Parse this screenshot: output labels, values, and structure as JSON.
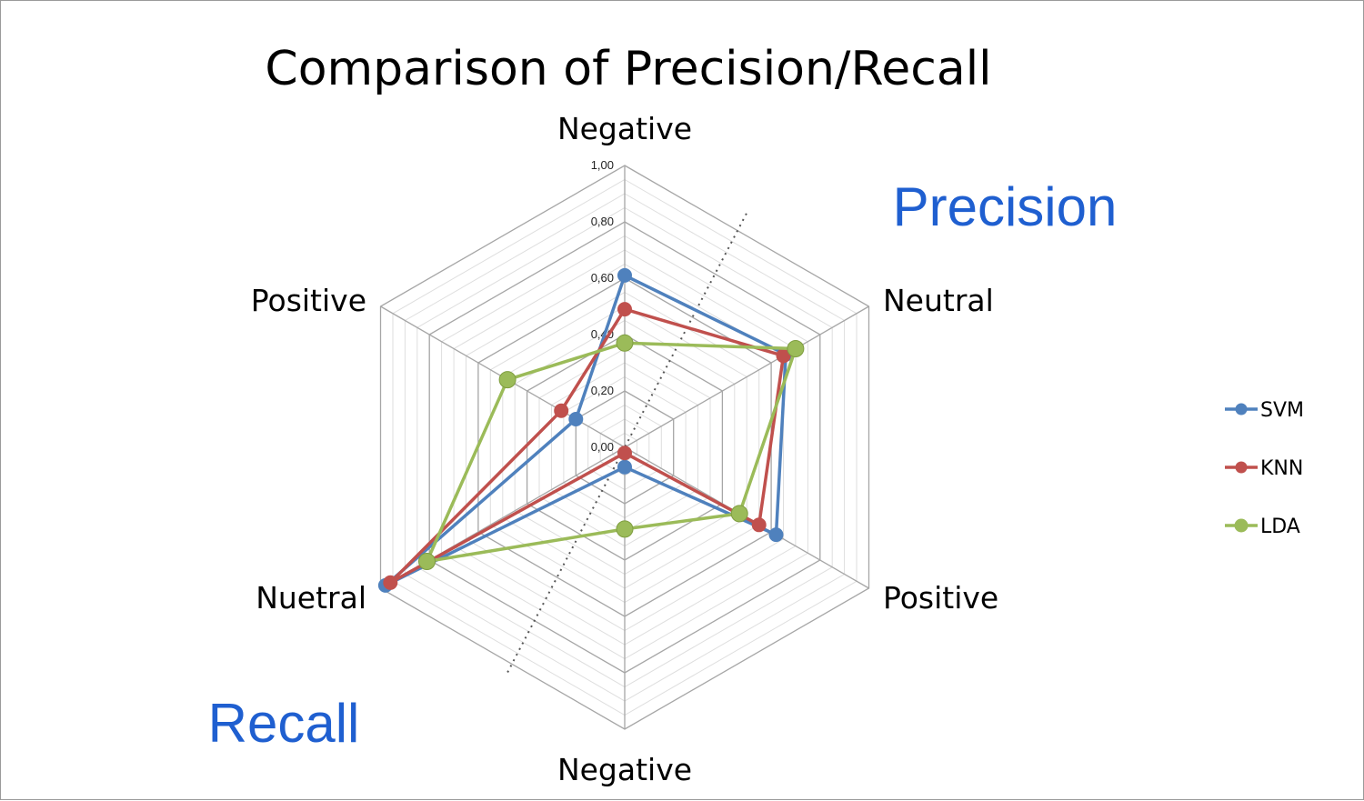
{
  "chart_data": {
    "type": "radar",
    "title": "Comparison of Precision/Recall",
    "axes": [
      "Negative",
      "Neutral",
      "Positive",
      "Negative",
      "Nuetral",
      "Positive"
    ],
    "tick_labels": [
      "0,00",
      "0,20",
      "0,40",
      "0,60",
      "0,80",
      "1,00"
    ],
    "range": [
      0,
      1
    ],
    "minor_gridlines": 20,
    "annotations": [
      {
        "text": "Precision",
        "color": "#1f5fd0"
      },
      {
        "text": "Recall",
        "color": "#1f5fd0"
      }
    ],
    "legend_position": "right",
    "series": [
      {
        "name": "SVM",
        "color": "#4f81bd",
        "values": [
          0.61,
          0.66,
          0.62,
          0.07,
          0.98,
          0.2
        ]
      },
      {
        "name": "KNN",
        "color": "#c0504d",
        "values": [
          0.49,
          0.65,
          0.55,
          0.02,
          0.96,
          0.26
        ]
      },
      {
        "name": "LDA",
        "color": "#9bbb59",
        "values": [
          0.37,
          0.7,
          0.47,
          0.29,
          0.81,
          0.48
        ]
      }
    ]
  }
}
